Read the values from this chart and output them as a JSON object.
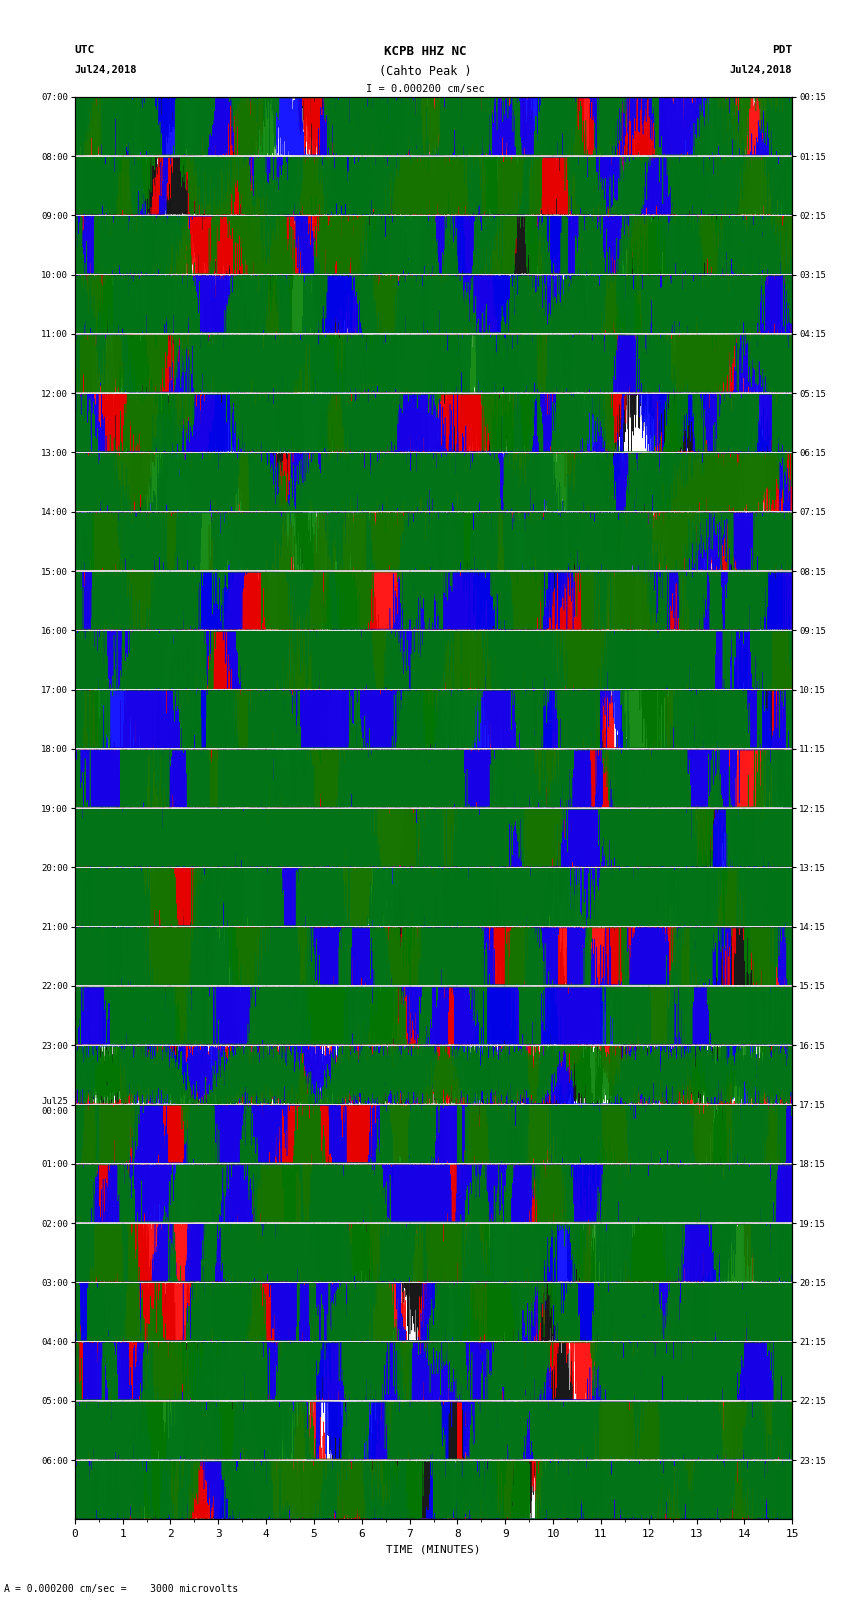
{
  "title_line1": "KCPB HHZ NC",
  "title_line2": "(Cahto Peak )",
  "scale_text": "I = 0.000200 cm/sec",
  "left_header": "UTC",
  "left_date": "Jul24,2018",
  "right_header": "PDT",
  "right_date": "Jul24,2018",
  "bottom_label": "TIME (MINUTES)",
  "bottom_note": "= 0.000200 cm/sec =    3000 microvolts",
  "utc_times": [
    "07:00",
    "08:00",
    "09:00",
    "10:00",
    "11:00",
    "12:00",
    "13:00",
    "14:00",
    "15:00",
    "16:00",
    "17:00",
    "18:00",
    "19:00",
    "20:00",
    "21:00",
    "22:00",
    "23:00",
    "Jul25\n00:00",
    "01:00",
    "02:00",
    "03:00",
    "04:00",
    "05:00",
    "06:00"
  ],
  "pdt_times": [
    "00:15",
    "01:15",
    "02:15",
    "03:15",
    "04:15",
    "05:15",
    "06:15",
    "07:15",
    "08:15",
    "09:15",
    "10:15",
    "11:15",
    "12:15",
    "13:15",
    "14:15",
    "15:15",
    "16:15",
    "17:15",
    "18:15",
    "19:15",
    "20:15",
    "21:15",
    "22:15",
    "23:15"
  ],
  "n_rows": 24,
  "x_min": 0,
  "x_max": 15,
  "bg_color": "white",
  "colors": [
    "black",
    "red",
    "blue",
    "green"
  ],
  "noise_seed": 42
}
